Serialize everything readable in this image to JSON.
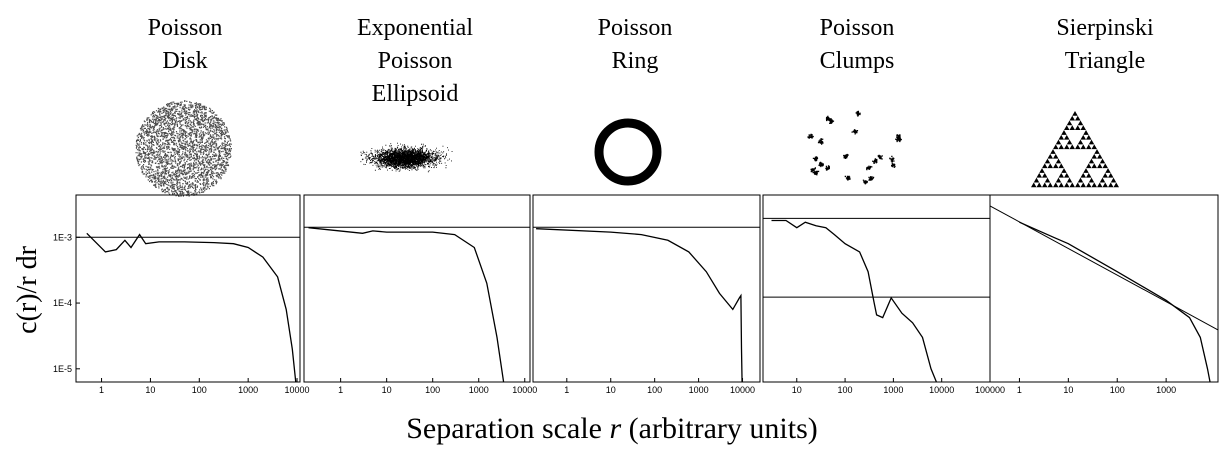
{
  "ylabel": "c(r)/r dr",
  "xlabel_parts": [
    "Separation scale ",
    "r",
    " (arbitrary units)"
  ],
  "chart_data": [
    {
      "type": "line",
      "title": [
        "Poisson",
        "Disk"
      ],
      "xscale": "log",
      "yscale": "log",
      "xlim": [
        0.3,
        11500
      ],
      "ylim": [
        6.3e-06,
        0.0044
      ],
      "xticks": [
        1,
        10,
        100,
        1000,
        10000
      ],
      "yticks": [
        {
          "value": 1e-05,
          "label": "1E-5"
        },
        {
          "value": 0.0001,
          "label": "1E-4"
        },
        {
          "value": 0.001,
          "label": "1E-3"
        }
      ],
      "series": [
        {
          "color": "#000",
          "x": [
            0.5,
            1.2,
            2,
            3,
            4,
            6,
            8,
            15,
            50,
            200,
            500,
            1000,
            2000,
            4000,
            6000,
            8000,
            9500
          ],
          "values": [
            0.00115,
            0.0006,
            0.00065,
            0.0009,
            0.0007,
            0.0011,
            0.0008,
            0.00085,
            0.00085,
            0.00083,
            0.0008,
            0.0007,
            0.0005,
            0.00025,
            8e-05,
            2e-05,
            6e-06
          ]
        },
        {
          "color": "#000",
          "x": [
            0.3,
            11500
          ],
          "values": [
            0.001,
            0.001
          ]
        }
      ]
    },
    {
      "type": "line",
      "title": [
        "Exponential",
        "Poisson",
        "Ellipsoid"
      ],
      "xscale": "log",
      "yscale": "log",
      "xlim": [
        0.16,
        13000
      ],
      "ylim": [
        6.3e-06,
        0.0044
      ],
      "xticks": [
        1,
        10,
        100,
        1000,
        10000
      ],
      "series": [
        {
          "color": "#000",
          "x": [
            0.2,
            3,
            5,
            10,
            100,
            300,
            800,
            1500,
            2500,
            3500
          ],
          "values": [
            0.0014,
            0.00115,
            0.00125,
            0.0012,
            0.0012,
            0.0011,
            0.0007,
            0.0002,
            3e-05,
            6e-06
          ]
        },
        {
          "color": "#000",
          "x": [
            0.16,
            13000
          ],
          "values": [
            0.00142,
            0.00142
          ]
        }
      ]
    },
    {
      "type": "line",
      "title": [
        "Poisson",
        "Ring"
      ],
      "xscale": "log",
      "yscale": "log",
      "xlim": [
        0.17,
        25000
      ],
      "ylim": [
        6.3e-06,
        0.0044
      ],
      "xticks": [
        1,
        10,
        100,
        1000,
        10000
      ],
      "series": [
        {
          "color": "#000",
          "x": [
            0.2,
            10,
            50,
            200,
            600,
            1500,
            3000,
            6000,
            8500,
            9200,
            9500,
            9800
          ],
          "values": [
            0.00135,
            0.0012,
            0.0011,
            0.0009,
            0.0006,
            0.0003,
            0.00014,
            8e-05,
            0.00012,
            0.00013,
            2e-05,
            6e-06
          ]
        },
        {
          "color": "#000",
          "x": [
            0.17,
            25000
          ],
          "values": [
            0.00142,
            0.00142
          ]
        }
      ]
    },
    {
      "type": "line",
      "title": [
        "Poisson",
        "Clumps"
      ],
      "xscale": "log",
      "yscale": "log",
      "xlim": [
        2,
        100000
      ],
      "ylim": [
        6.3e-06,
        0.0044
      ],
      "xticks": [
        10,
        100,
        1000,
        10000,
        100000
      ],
      "series": [
        {
          "color": "#000",
          "x": [
            3,
            6,
            10,
            15,
            25,
            40,
            60,
            100,
            200,
            300,
            400,
            450,
            600,
            900,
            1500,
            2500,
            4000,
            6000,
            8000
          ],
          "values": [
            0.0018,
            0.0018,
            0.0014,
            0.0017,
            0.0015,
            0.0014,
            0.0011,
            0.0008,
            0.0006,
            0.0003,
            0.0001,
            6.6e-05,
            6e-05,
            0.00012,
            7e-05,
            5e-05,
            3e-05,
            1e-05,
            6e-06
          ]
        },
        {
          "color": "#000",
          "x": [
            2,
            100000
          ],
          "values": [
            0.00194,
            0.00194
          ]
        },
        {
          "color": "#000",
          "x": [
            2,
            100000
          ],
          "values": [
            0.000123,
            0.000123
          ]
        }
      ]
    },
    {
      "type": "line",
      "title": [
        "Sierpinski",
        "Triangle"
      ],
      "xscale": "log",
      "yscale": "log",
      "xlim": [
        0.25,
        11500
      ],
      "ylim": [
        6.3e-06,
        0.0044
      ],
      "xticks": [
        1,
        10,
        100,
        1000
      ],
      "series": [
        {
          "color": "#000",
          "x": [
            1,
            5,
            10,
            100,
            1000,
            3000,
            5000,
            7000,
            8000
          ],
          "values": [
            0.0017,
            0.001,
            0.0008,
            0.0003,
            0.00011,
            6e-05,
            3e-05,
            1e-05,
            6e-06
          ]
        },
        {
          "color": "#000",
          "x": [
            0.25,
            11500
          ],
          "values": [
            0.003,
            3.9e-05
          ]
        }
      ]
    }
  ]
}
